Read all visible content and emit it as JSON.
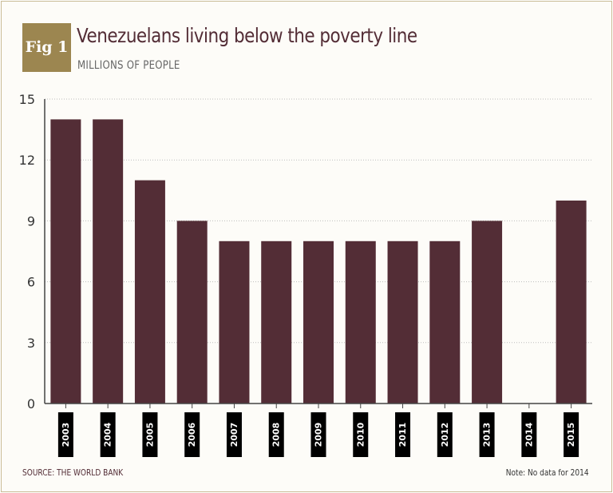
{
  "figure": {
    "badge": "Fig 1",
    "source": "SOURCE: THE WORLD BANK",
    "note": "Note: No data for 2014"
  },
  "colors": {
    "bar": "#532d36",
    "badge": "#9c8650",
    "grid": "#bdbdbd",
    "axis": "#444444"
  },
  "chart_data": {
    "type": "bar",
    "title": "Venezuelans living below the poverty line",
    "subtitle": "MILLIONS OF PEOPLE",
    "xlabel": "",
    "ylabel": "",
    "categories": [
      "2003",
      "2004",
      "2005",
      "2006",
      "2007",
      "2008",
      "2009",
      "2010",
      "2011",
      "2012",
      "2013",
      "2014",
      "2015"
    ],
    "values": [
      14,
      14,
      11,
      9,
      8,
      8,
      8,
      8,
      8,
      8,
      9,
      null,
      10
    ],
    "ylim": [
      0,
      15
    ],
    "yticks": [
      "0",
      "3",
      "6",
      "9",
      "12",
      "15"
    ],
    "grid": true
  }
}
